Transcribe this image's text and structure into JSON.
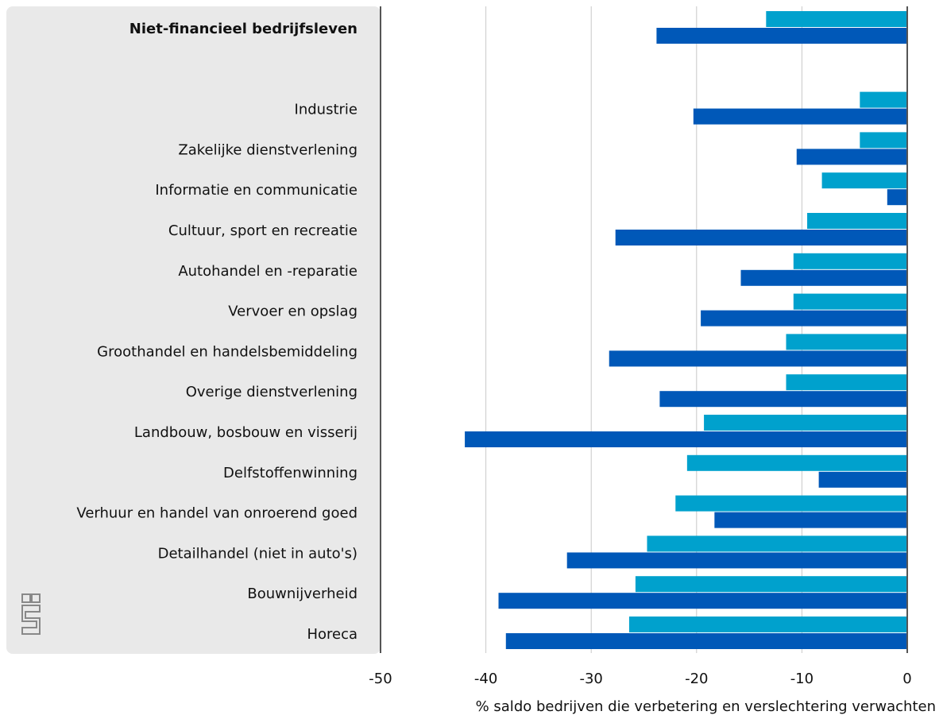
{
  "chart_data": {
    "type": "hbar",
    "xlabel": "% saldo bedrijven die verbetering en verslechtering verwachten",
    "categories": [
      "Niet-financieel bedrijfsleven",
      null,
      "Industrie",
      "Zakelijke dienstverlening",
      "Informatie en communicatie",
      "Cultuur, sport en recreatie",
      "Autohandel en -reparatie",
      "Vervoer en opslag",
      "Groothandel en handelsbemiddeling",
      "Overige dienstverlening",
      "Landbouw, bosbouw en visserij",
      "Delfstoffenwinning",
      "Verhuur en handel van onroerend goed",
      "Detailhandel (niet in auto's)",
      "Bouwnijverheid",
      "Horeca"
    ],
    "series": [
      {
        "color": "#00a1cd",
        "values": [
          -13.4,
          null,
          -4.5,
          -4.5,
          -8.1,
          -9.5,
          -10.8,
          -10.8,
          -11.5,
          -11.5,
          -19.3,
          -20.9,
          -22.0,
          -24.7,
          -25.8,
          -26.4
        ]
      },
      {
        "color": "#0058b8",
        "values": [
          -23.8,
          null,
          -20.3,
          -10.5,
          -1.9,
          -27.7,
          -15.8,
          -19.6,
          -28.3,
          -23.5,
          -42.0,
          -8.4,
          -18.3,
          -32.3,
          -38.8,
          -38.1
        ]
      }
    ],
    "xlim": [
      -50,
      0
    ],
    "xticks": [
      -50,
      -40,
      -30,
      -20,
      -10,
      0
    ],
    "grid": true
  }
}
